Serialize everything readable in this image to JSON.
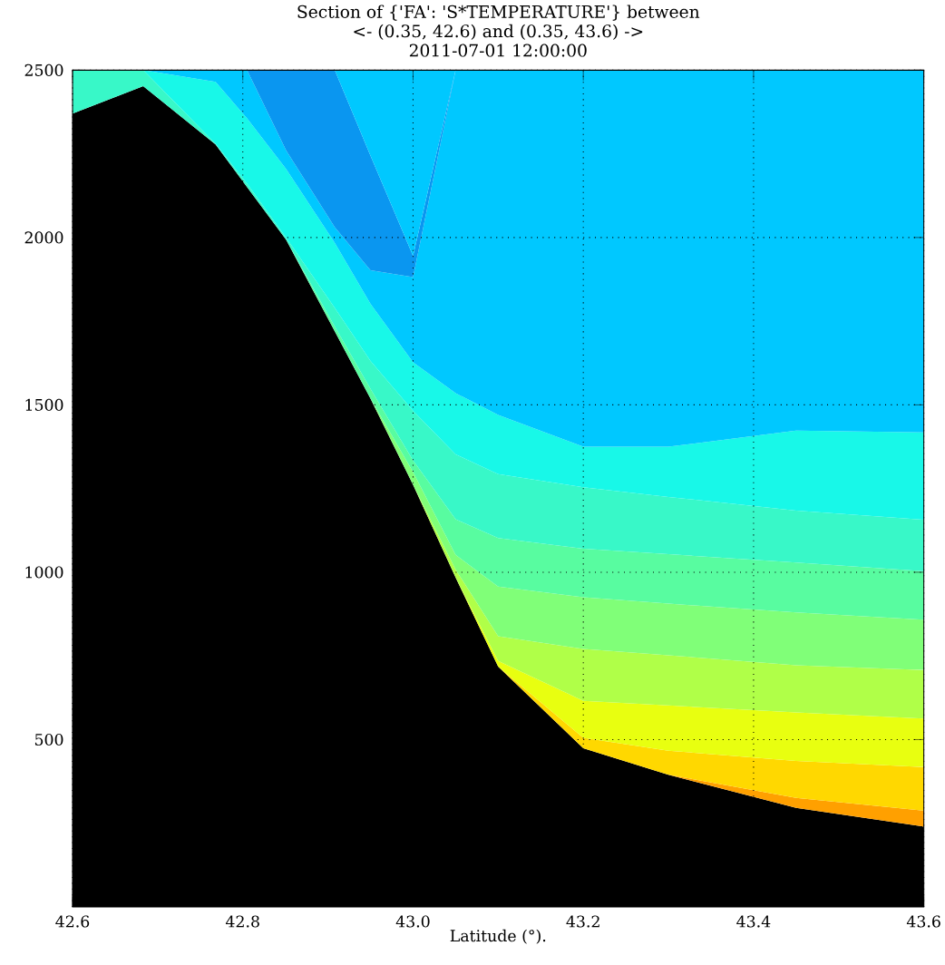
{
  "chart_data": {
    "type": "area",
    "title": "Section of {'FA': 'S*TEMPERATURE'} between",
    "subtitle": "<- (0.35, 42.6) and (0.35, 43.6) ->",
    "annotations": [
      "2011-07-01 12:00:00"
    ],
    "xlabel": "Latitude (°).",
    "xlim": [
      42.6,
      43.6
    ],
    "ylim": [
      0,
      2500
    ],
    "xticks": [
      42.6,
      42.8,
      {
        "value": 43.0,
        "label": "43.0"
      },
      43.2,
      43.4,
      43.6
    ],
    "yticks": [
      500,
      1000,
      1500,
      2000,
      2500
    ],
    "grid": true,
    "line_style": "dotted",
    "stacked": true,
    "x": [
      42.6,
      42.683,
      42.768,
      42.805,
      42.851,
      42.908,
      42.95,
      43.0,
      43.05,
      43.1,
      43.2,
      43.3,
      43.45,
      43.6
    ],
    "series": [
      {
        "color": "#000000",
        "values": [
          2370,
          2452,
          2278,
          2151,
          1993,
          1720,
          1519,
          1261,
          984,
          718,
          474,
          395,
          296,
          240
        ]
      },
      {
        "color": "#ffa000",
        "values": [
          0,
          0,
          0,
          0,
          0,
          0,
          0,
          0,
          0,
          0,
          0,
          0,
          30,
          48
        ]
      },
      {
        "color": "#ffd800",
        "values": [
          0,
          0,
          0,
          0,
          0,
          0,
          0,
          0,
          0,
          0,
          31,
          72,
          110,
          130
        ]
      },
      {
        "color": "#e8ff10",
        "values": [
          0,
          0,
          0,
          0,
          0,
          0,
          0,
          0,
          0,
          17,
          111,
          135,
          145,
          145
        ]
      },
      {
        "color": "#b0ff48",
        "values": [
          0,
          0,
          0,
          0,
          0,
          0,
          0,
          0,
          24,
          74,
          155,
          150,
          141,
          145
        ]
      },
      {
        "color": "#80ff78",
        "values": [
          0,
          0,
          0,
          0,
          0,
          0,
          0,
          38,
          44,
          148,
          154,
          154,
          158,
          150
        ]
      },
      {
        "color": "#58fca0",
        "values": [
          0,
          0,
          0,
          0,
          0,
          14,
          29,
          35,
          106,
          145,
          145,
          148,
          149,
          145
        ]
      },
      {
        "color": "#38f8c8",
        "values": [
          130,
          48,
          2,
          10,
          6,
          56,
          83,
          148,
          194,
          191,
          184,
          171,
          155,
          154
        ]
      },
      {
        "color": "#18f8e8",
        "values": [
          0,
          0,
          185,
          195,
          205,
          194,
          171,
          145,
          183,
          177,
          121,
          150,
          239,
          261
        ]
      },
      {
        "color": "#00c8ff",
        "values": [
          0,
          0,
          35,
          144,
          56,
          47,
          100,
          255,
          965,
          1030,
          1125,
          1125,
          1077,
          1082
        ]
      },
      {
        "color": "#0a96f0",
        "values": [
          0,
          0,
          0,
          0,
          240,
          469,
          342,
          63,
          0,
          0,
          0,
          0,
          0,
          0
        ]
      },
      {
        "color": "#00c8ff",
        "values": [
          0,
          0,
          0,
          0,
          0,
          0,
          256,
          555,
          0,
          0,
          0,
          0,
          0,
          0
        ]
      }
    ]
  }
}
